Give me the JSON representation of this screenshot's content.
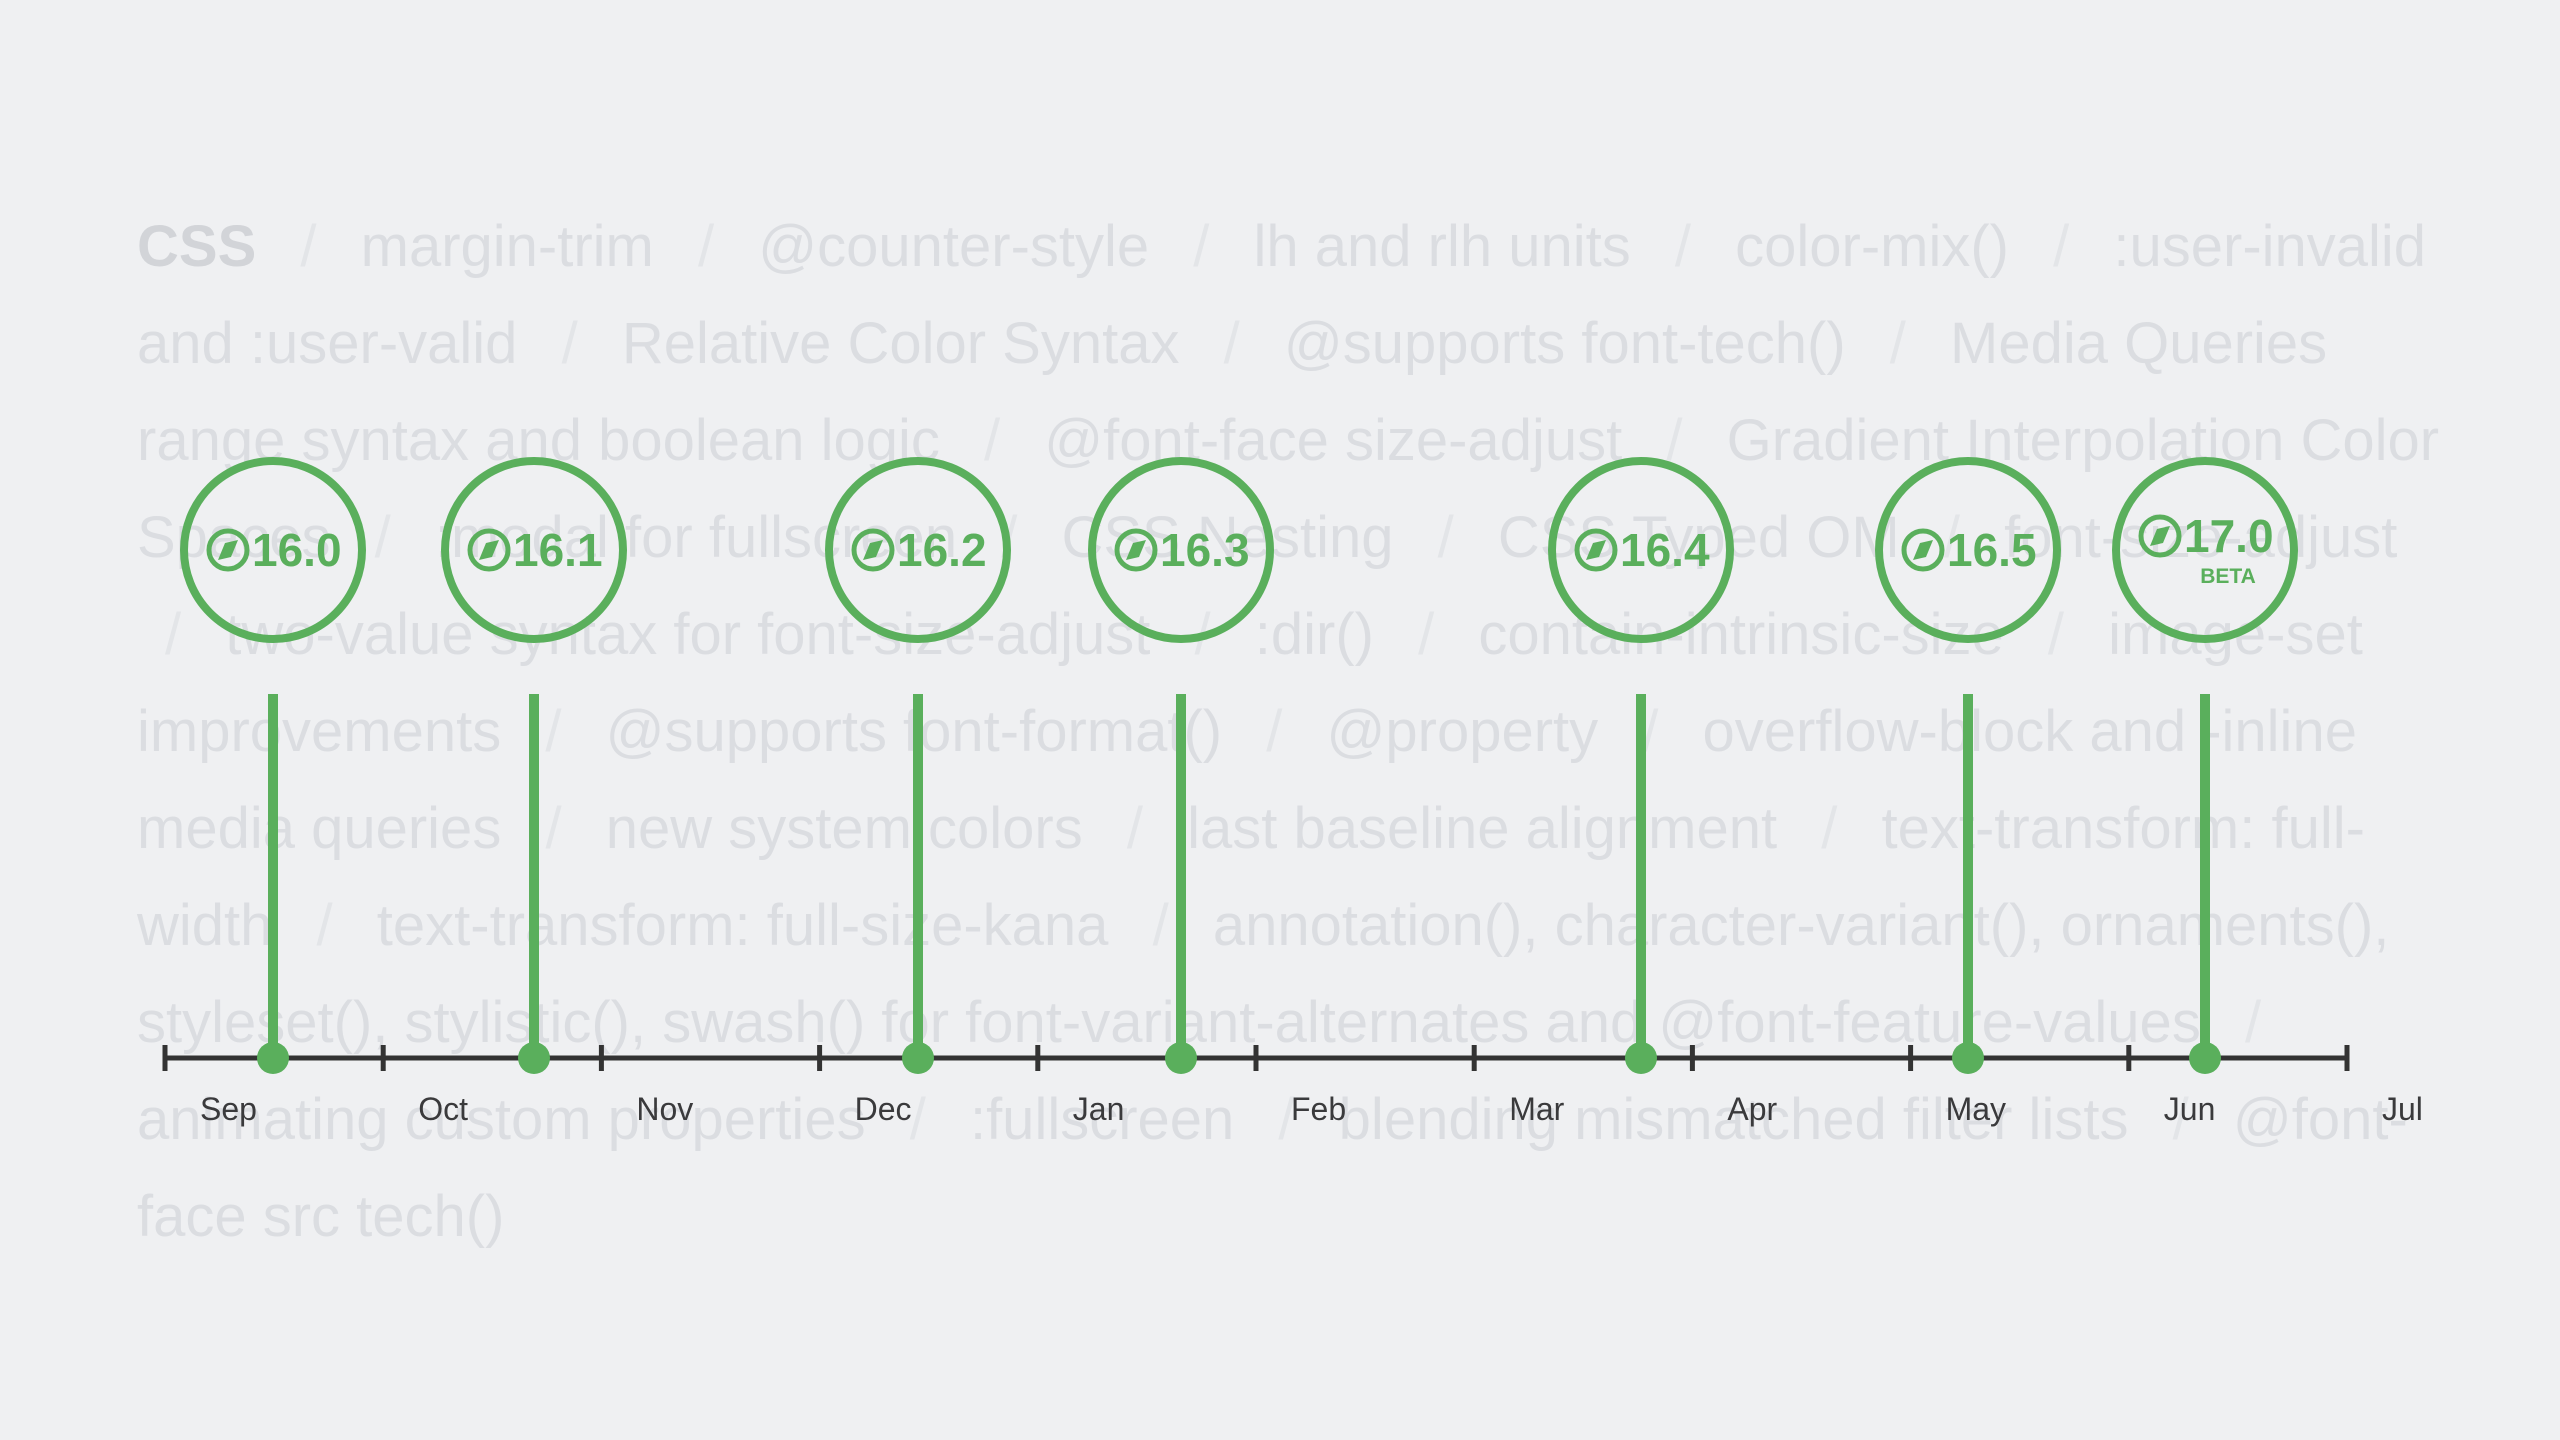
{
  "features": {
    "items": [
      "CSS",
      "margin-trim",
      "@counter-style",
      "lh and rlh units",
      "color-mix()",
      ":user-invalid and :user-valid",
      "Relative Color Syntax",
      "@supports font-tech()",
      "Media Queries range syntax and boolean logic",
      "@font-face  size-adjust",
      "Gradient Interpolation Color Spaces",
      ":modal for fullscreen",
      "CSS Nesting",
      "CSS Typed OM",
      "font-size-adjust",
      "two-value syntax for font-size-adjust",
      ":dir()",
      "contain-intrinsic-size",
      "image-set improvements",
      "@supports font-format()",
      "@property",
      "overflow-block and -inline media queries",
      "new system colors",
      "last baseline alignment",
      "text-transform: full-width",
      "text-transform: full-size-kana",
      "annotation(), character-variant(), ornaments(), styleset(), stylistic(), swash() for font-variant-alternates and @font-feature-values",
      "animating custom properties",
      ":fullscreen",
      "blending mismatched filter lists",
      "@font-face src tech()"
    ],
    "separator": "/"
  },
  "timeline": {
    "months": [
      "Sep",
      "Oct",
      "Nov",
      "Dec",
      "Jan",
      "Feb",
      "Mar",
      "Apr",
      "May",
      "Jun",
      "Jul"
    ],
    "releases": [
      {
        "version": "16.0"
      },
      {
        "version": "16.1"
      },
      {
        "version": "16.2"
      },
      {
        "version": "16.3"
      },
      {
        "version": "16.4"
      },
      {
        "version": "16.5"
      },
      {
        "version": "17.0",
        "badge": "BETA"
      }
    ]
  }
}
